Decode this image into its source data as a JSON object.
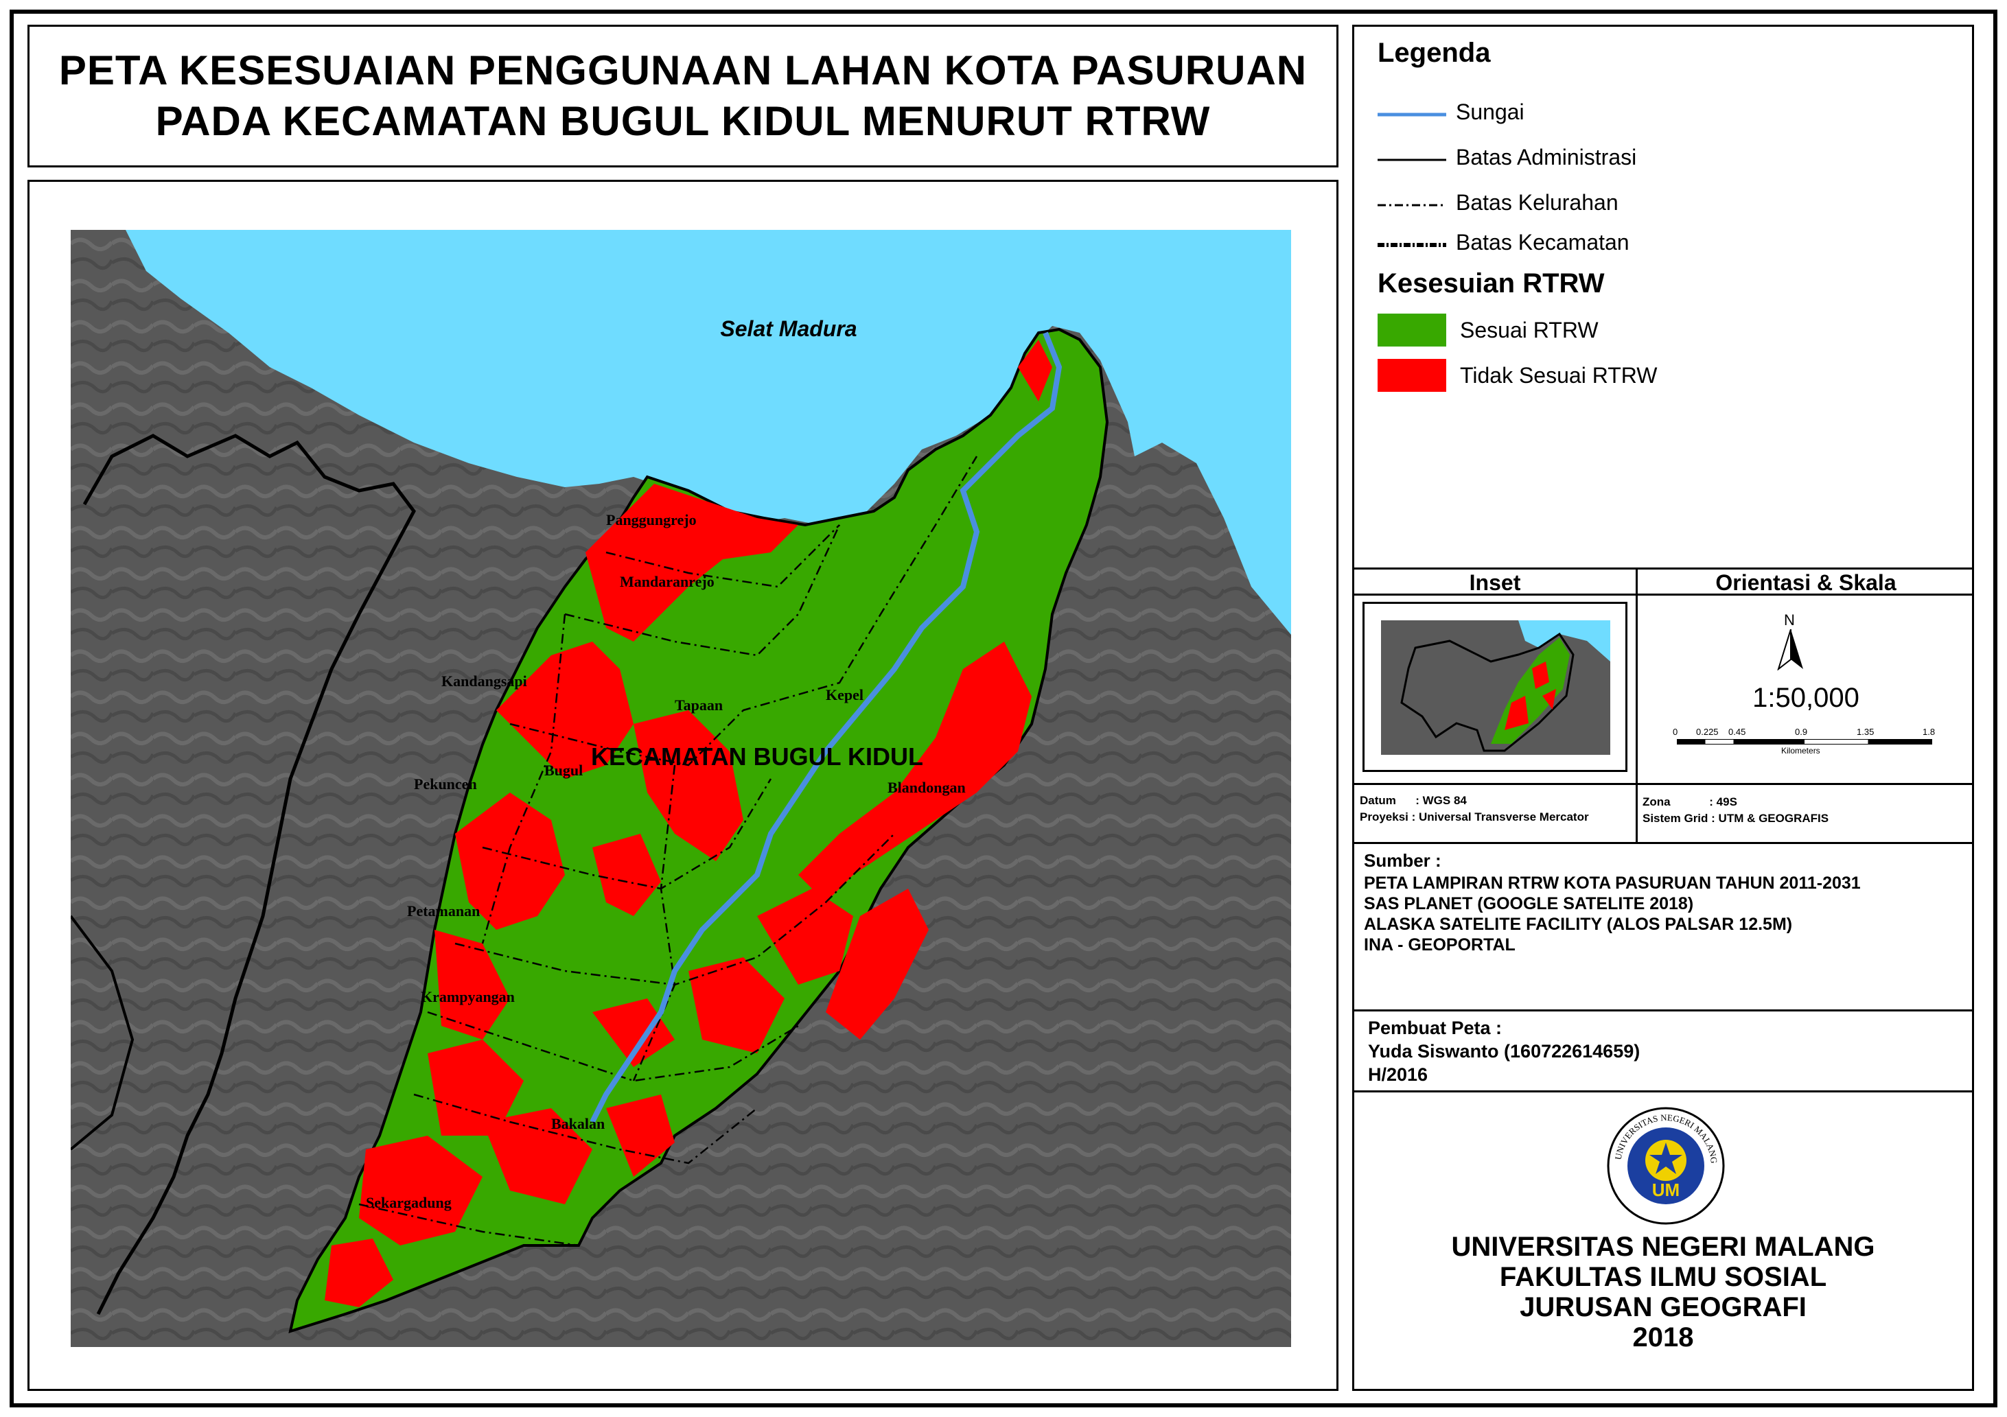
{
  "title": {
    "line1": "PETA KESESUAIAN PENGGUNAAN LAHAN KOTA PASURUAN",
    "line2": "PADA KECAMATAN BUGUL KIDUL MENURUT RTRW"
  },
  "map": {
    "sea_label": "Selat Madura",
    "district_label": "KECAMATAN BUGUL KIDUL",
    "kelurahan": [
      "Panggungrejo",
      "Mandaranrejo",
      "Kandangsapi",
      "Tapaan",
      "Kepel",
      "Pekuncen",
      "Bugul",
      "Blandongan",
      "Petamanan",
      "Krampyangan",
      "Bakalan",
      "Sekargadung"
    ],
    "colors": {
      "sea": "#6fdcff",
      "land": "#555555",
      "sesuai": "#38a800",
      "tidak_sesuai": "#ff0000",
      "river": "#4a8fe0"
    }
  },
  "legend": {
    "title": "Legenda",
    "lines": [
      {
        "label": "Sungai",
        "icon": "river-line"
      },
      {
        "label": "Batas Administrasi",
        "icon": "solid-line"
      },
      {
        "label": "Batas Kelurahan",
        "icon": "dash-dot-line"
      },
      {
        "label": "Batas Kecamatan",
        "icon": "dotted-thick-line"
      }
    ],
    "subtitle": "Kesesuian RTRW",
    "classes": [
      {
        "label": "Sesuai RTRW",
        "color": "#38a800"
      },
      {
        "label": "Tidak Sesuai RTRW",
        "color": "#ff0000"
      }
    ]
  },
  "inset": {
    "heading": "Inset"
  },
  "orientation": {
    "heading": "Orientasi & Skala",
    "north": "N",
    "scale": "1:50,000",
    "ticks": [
      "0",
      "0.225",
      "0.45",
      "0.9",
      "1.35",
      "1.8"
    ],
    "unit": "Kilometers"
  },
  "projection": {
    "datum_label": "Datum",
    "datum_value": ": WGS 84",
    "proj_label": "Proyeksi",
    "proj_value": ": Universal Transverse Mercator",
    "zona_label": "Zona",
    "zona_value": ": 49S",
    "grid_label": "Sistem Grid",
    "grid_value": ": UTM & GEOGRAFIS"
  },
  "sources": {
    "heading": "Sumber :",
    "items": [
      "PETA LAMPIRAN RTRW KOTA PASURUAN TAHUN 2011-2031",
      "SAS PLANET (GOOGLE SATELITE 2018)",
      "ALASKA SATELITE FACILITY (ALOS PALSAR 12.5M)",
      "INA - GEOPORTAL"
    ]
  },
  "maker": {
    "heading": "Pembuat Peta :",
    "name": "Yuda Siswanto (160722614659)",
    "class": "H/2016"
  },
  "institution": {
    "logo_text": "UNIVERSITAS NEGERI MALANG",
    "logo_initials": "UM",
    "lines": [
      "UNIVERSITAS NEGERI MALANG",
      "FAKULTAS ILMU SOSIAL",
      "JURUSAN GEOGRAFI",
      "2018"
    ]
  }
}
